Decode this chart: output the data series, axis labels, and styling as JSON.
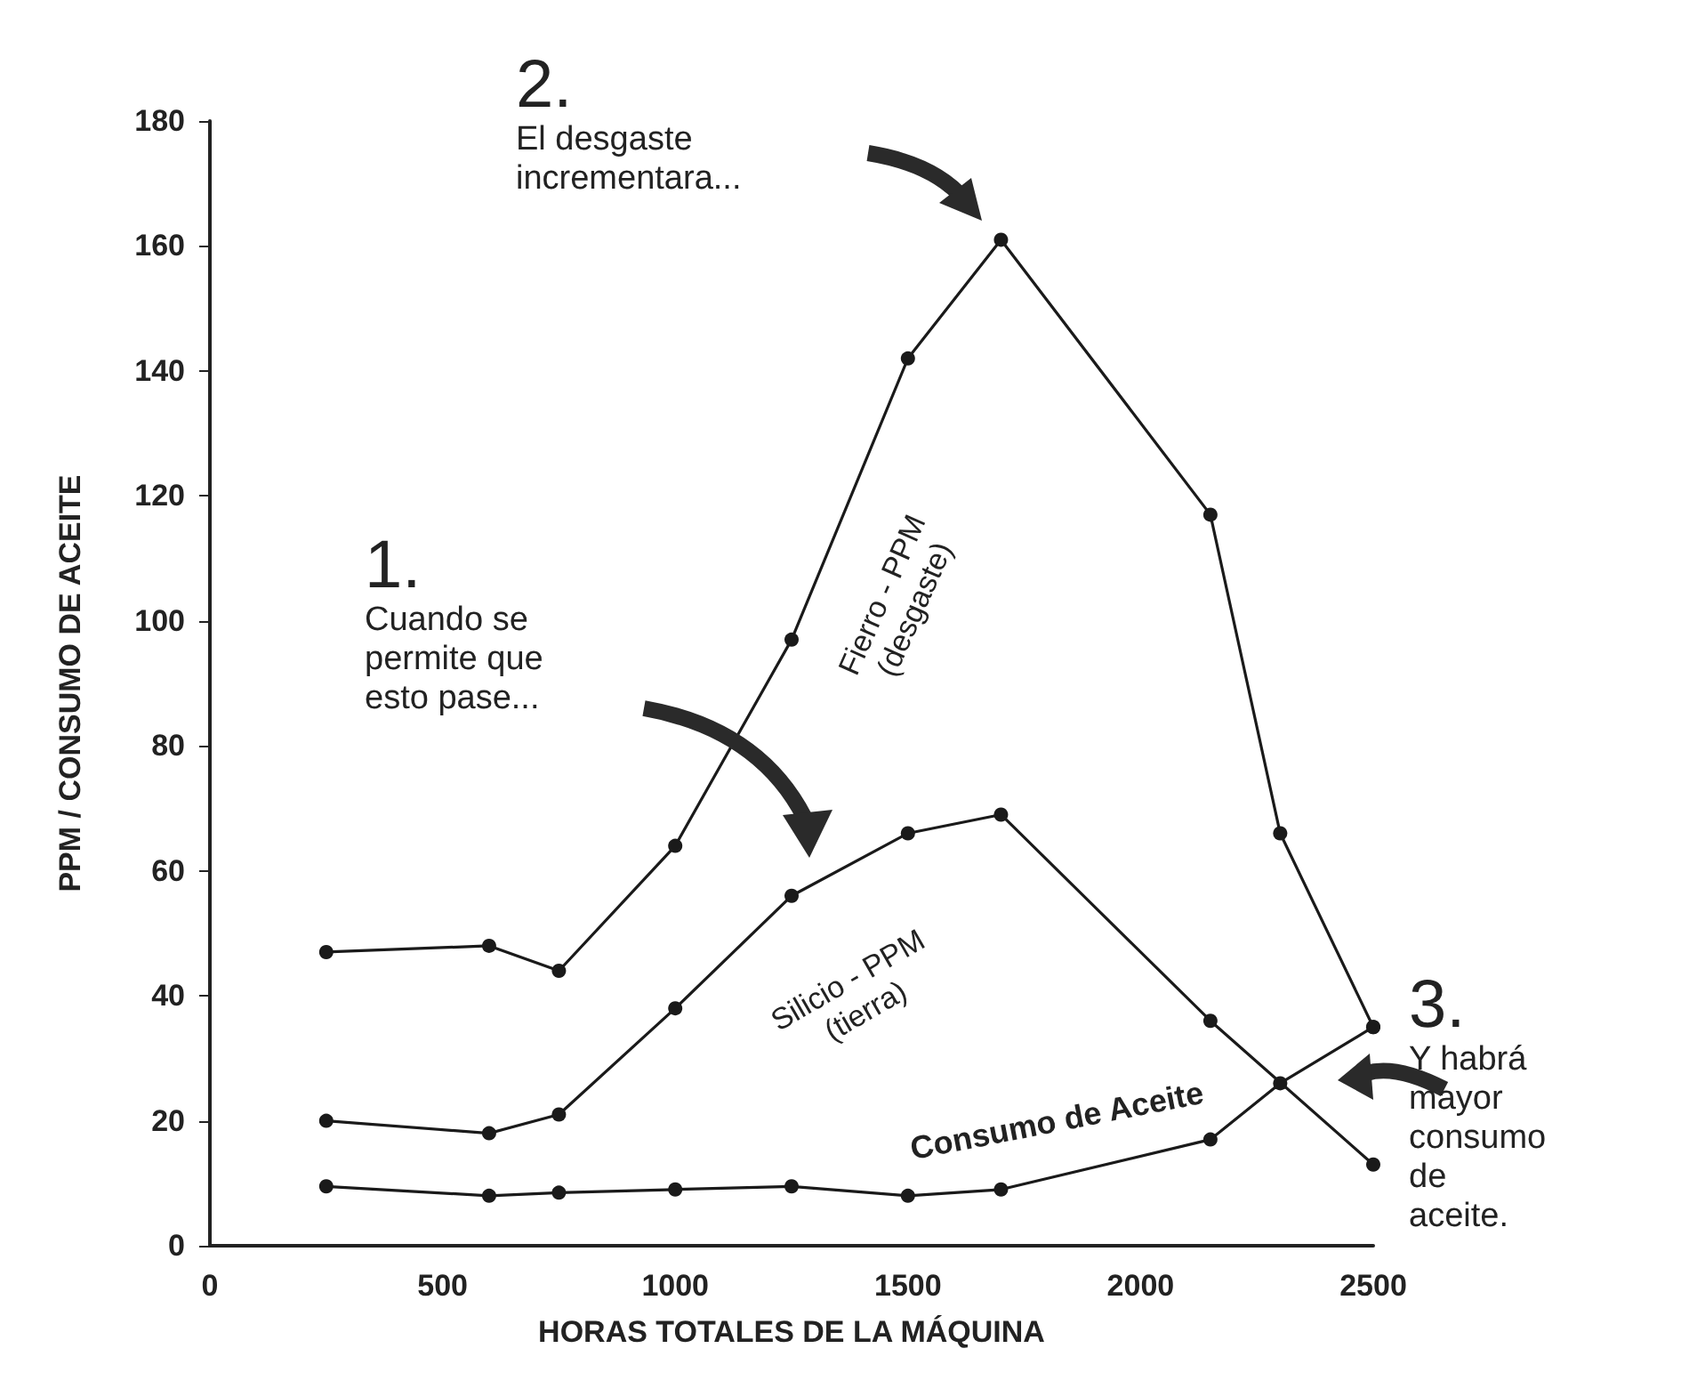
{
  "chart_data": {
    "type": "line",
    "xlabel": "HORAS TOTALES DE LA MÁQUINA",
    "ylabel": "PPM / CONSUMO DE ACEITE",
    "xlim": [
      0,
      2500
    ],
    "xticks": [
      0,
      500,
      1000,
      1500,
      2000,
      2500
    ],
    "ylim": [
      0,
      180
    ],
    "yticks": [
      0,
      20,
      40,
      60,
      80,
      100,
      120,
      140,
      160,
      180
    ],
    "grid": false,
    "legend": false,
    "marker": "circle",
    "line_style": "solid",
    "series": [
      {
        "name": "Fierro - PPM\n(desgaste)",
        "color": "#1a1a1a",
        "x": [
          250,
          600,
          750,
          1000,
          1250,
          1500,
          1700,
          2150,
          2300,
          2500
        ],
        "values": [
          47,
          48,
          44,
          64,
          97,
          142,
          161,
          117,
          66,
          35
        ]
      },
      {
        "name": "Silicio - PPM\n(tierra)",
        "color": "#1a1a1a",
        "x": [
          250,
          600,
          750,
          1000,
          1250,
          1500,
          1700,
          2150,
          2500
        ],
        "values": [
          20,
          18,
          21,
          38,
          56,
          66,
          69,
          36,
          13
        ]
      },
      {
        "name": "Consumo de Aceite",
        "color": "#1a1a1a",
        "x": [
          250,
          600,
          750,
          1000,
          1250,
          1500,
          1700,
          2150,
          2300,
          2500
        ],
        "values": [
          9.5,
          8,
          8.5,
          9,
          9.5,
          8,
          9,
          17,
          26,
          35
        ]
      }
    ],
    "annotations": [
      "1.\nCuando se\npermite que\nesto pase...",
      "2.\nEl desgaste\nincrementara...",
      "3.\nY habrá\nmayor\nconsumo\nde\naceite."
    ]
  }
}
